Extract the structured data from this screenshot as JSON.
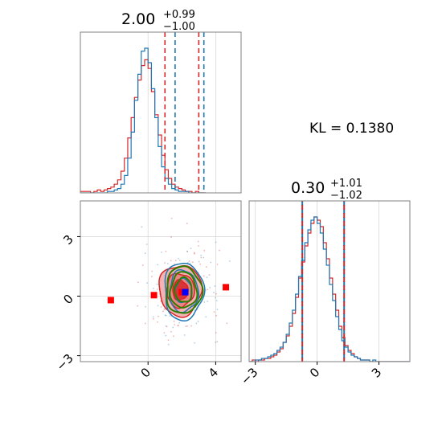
{
  "colors": {
    "red": "#d62728",
    "blue": "#1f77b4",
    "green": "#2e7d00",
    "marker_blue": "#0000ff",
    "marker_red": "#ff0000",
    "fill_red_light": "#f2a7a7",
    "fill_red_mid": "#e87c7c",
    "grid": "#d9d9d9",
    "frame": "#808080"
  },
  "annotation": {
    "kl": "KL = 0.1380"
  },
  "chart_data": [
    {
      "type": "histogram",
      "panel": "param1-marginal",
      "title": {
        "main": "2.00",
        "sup": "+0.99",
        "sub": "−1.00"
      },
      "xlim": [
        -4.0,
        5.5
      ],
      "grid": true,
      "quantile_lines": {
        "red": [
          1.0,
          3.0
        ],
        "blue": [
          1.6,
          3.3
        ]
      },
      "bin_edges_start": -4.0,
      "bin_width": 0.2,
      "series": [
        {
          "name": "",
          "color": "red",
          "values": [
            1,
            1,
            1,
            0,
            1,
            2,
            1,
            2,
            3,
            4,
            6,
            9,
            15,
            24,
            38,
            52,
            66,
            78,
            88,
            92,
            86,
            70,
            54,
            40,
            26,
            16,
            10,
            6,
            4,
            3,
            2,
            1,
            1,
            0,
            1,
            0,
            0
          ]
        },
        {
          "name": "",
          "color": "blue",
          "values": [
            0,
            0,
            0,
            0,
            0,
            0,
            0,
            0,
            1,
            1,
            2,
            3,
            6,
            12,
            24,
            42,
            64,
            82,
            98,
            100,
            90,
            72,
            52,
            32,
            18,
            10,
            6,
            3,
            2,
            1,
            1,
            1,
            0,
            0,
            0,
            0,
            0
          ]
        }
      ]
    },
    {
      "type": "histogram",
      "panel": "param2-marginal",
      "title": {
        "main": "0.30",
        "sup": "+1.01",
        "sub": "−1.02"
      },
      "xlim": [
        -3.3,
        4.5
      ],
      "xticks": [
        "−3",
        "0",
        "3"
      ],
      "xtick_values": [
        -3,
        0,
        3
      ],
      "grid": true,
      "quantile_lines": {
        "red": [
          -0.72,
          1.31
        ],
        "blue": [
          -0.72,
          1.31
        ]
      },
      "bin_edges_start": -3.3,
      "bin_width": 0.15,
      "series": [
        {
          "name": "",
          "color": "red",
          "values": [
            0,
            1,
            0,
            1,
            1,
            2,
            2,
            3,
            4,
            6,
            8,
            12,
            16,
            22,
            30,
            40,
            52,
            62,
            72,
            80,
            86,
            90,
            88,
            84,
            74,
            64,
            52,
            42,
            32,
            22,
            15,
            10,
            7,
            5,
            3,
            2,
            1,
            1,
            1,
            0,
            0,
            0,
            0,
            0,
            0,
            0,
            0,
            0,
            0,
            0,
            0,
            0
          ]
        },
        {
          "name": "",
          "color": "blue",
          "values": [
            0,
            0,
            1,
            1,
            2,
            2,
            3,
            4,
            5,
            7,
            9,
            12,
            17,
            24,
            32,
            42,
            53,
            63,
            74,
            82,
            88,
            90,
            86,
            80,
            70,
            60,
            48,
            38,
            28,
            20,
            13,
            9,
            6,
            4,
            3,
            2,
            1,
            1,
            1,
            0,
            1,
            0,
            0,
            0,
            0,
            0,
            0,
            0,
            0,
            0,
            0,
            0
          ]
        }
      ]
    },
    {
      "type": "contour",
      "panel": "param1-vs-param2",
      "xlim": [
        -4.0,
        5.5
      ],
      "ylim": [
        -3.3,
        4.8
      ],
      "xticks": [
        "0",
        "4"
      ],
      "xtick_values": [
        0,
        4
      ],
      "yticks": [
        "−3",
        "0",
        "3"
      ],
      "ytick_values": [
        -3,
        0,
        3
      ],
      "grid": true,
      "contour_sets": [
        {
          "color": "red",
          "filled": true,
          "center": [
            1.9,
            0.3
          ],
          "levels": [
            {
              "sx": 1.25,
              "sy": 1.28
            },
            {
              "sx": 0.82,
              "sy": 0.85
            },
            {
              "sx": 0.45,
              "sy": 0.5
            }
          ]
        },
        {
          "color": "blue",
          "filled": false,
          "center": [
            2.1,
            0.25
          ],
          "levels": [
            {
              "sx": 1.15,
              "sy": 1.45
            },
            {
              "sx": 0.85,
              "sy": 1.05
            },
            {
              "sx": 0.5,
              "sy": 0.6
            }
          ]
        },
        {
          "color": "green",
          "filled": false,
          "center": [
            2.1,
            0.3
          ],
          "levels": [
            {
              "sx": 1.05,
              "sy": 1.18
            },
            {
              "sx": 0.78,
              "sy": 0.9
            },
            {
              "sx": 0.5,
              "sy": 0.62
            }
          ]
        }
      ],
      "markers": [
        {
          "color": "marker_red",
          "x": -2.2,
          "y": -0.2
        },
        {
          "color": "marker_red",
          "x": 0.35,
          "y": 0.05
        },
        {
          "color": "marker_red",
          "x": 2.0,
          "y": 0.2
        },
        {
          "color": "marker_red",
          "x": 4.6,
          "y": 0.45
        },
        {
          "color": "marker_blue",
          "x": 2.2,
          "y": 0.2
        }
      ]
    }
  ]
}
